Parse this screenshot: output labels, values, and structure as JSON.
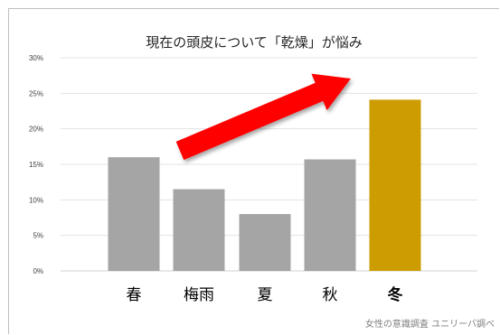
{
  "chart_data": {
    "type": "bar",
    "title": "現在の頭皮について「乾燥」が悩み",
    "categories": [
      "春",
      "梅雨",
      "夏",
      "秋",
      "冬"
    ],
    "values": [
      16,
      11.5,
      8,
      15.7,
      24.1
    ],
    "unit": "%",
    "ylim": [
      0,
      30
    ],
    "yticks": [
      "0%",
      "5%",
      "10%",
      "15%",
      "20%",
      "25%",
      "30%"
    ],
    "grid": true,
    "colors": {
      "default_bar": "#a5a5a5",
      "highlight_bar": "#cc9c00",
      "arrow": "#ff0000",
      "gridline": "#e3e3e3"
    },
    "highlight_index": 4,
    "annotation": "upward-trend-arrow",
    "source": "女性の意識調査 ユニリーバ調べ"
  }
}
